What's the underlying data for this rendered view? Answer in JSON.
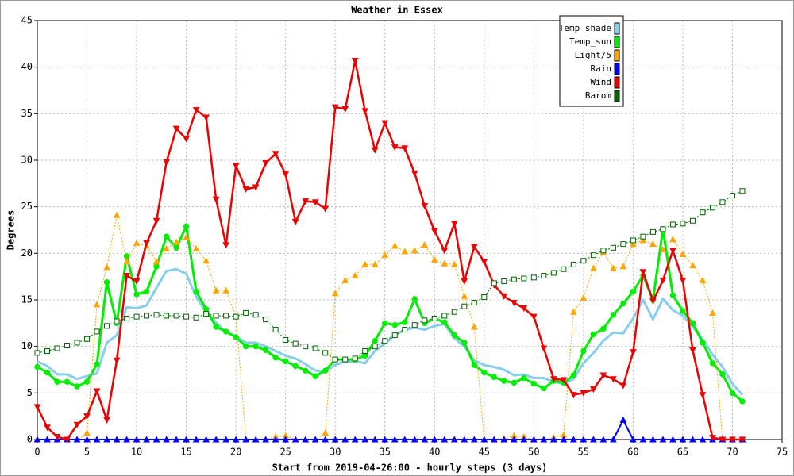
{
  "chart_data": {
    "type": "line",
    "title": "Weather in Essex",
    "y_label": "Degrees",
    "x_label": "Start from 2019-04-26:00 - hourly steps (3 days)",
    "x": [
      0,
      1,
      2,
      3,
      4,
      5,
      6,
      7,
      8,
      9,
      10,
      11,
      12,
      13,
      14,
      15,
      16,
      17,
      18,
      19,
      20,
      21,
      22,
      23,
      24,
      25,
      26,
      27,
      28,
      29,
      30,
      31,
      32,
      33,
      34,
      35,
      36,
      37,
      38,
      39,
      40,
      41,
      42,
      43,
      44,
      45,
      46,
      47,
      48,
      49,
      50,
      51,
      52,
      53,
      54,
      55,
      56,
      57,
      58,
      59,
      60,
      61,
      62,
      63,
      64,
      65,
      66,
      67,
      68,
      69,
      70,
      71
    ],
    "xlim": [
      0,
      75
    ],
    "xticks": [
      0,
      5,
      10,
      15,
      20,
      25,
      30,
      35,
      40,
      45,
      50,
      55,
      60,
      65,
      70,
      75
    ],
    "ylim": [
      0,
      45
    ],
    "yticks": [
      0,
      5,
      10,
      15,
      20,
      25,
      30,
      35,
      40,
      45
    ],
    "grid": true,
    "legend": "upper right",
    "series": [
      {
        "name": "Temp_shade",
        "color": "#87ceeb",
        "marker": "none",
        "dash": false,
        "width": 3,
        "values": [
          8.4,
          7.9,
          7,
          7,
          6.5,
          6.8,
          7.1,
          10.4,
          11.2,
          14.2,
          14.1,
          14.4,
          16.3,
          18.1,
          18.3,
          17.8,
          15.3,
          13.7,
          12.6,
          11.5,
          11.1,
          10.4,
          10.4,
          10,
          9.5,
          9,
          8.7,
          8.1,
          7.4,
          7.3,
          8,
          8.4,
          8.4,
          8.2,
          9.5,
          10.3,
          11.2,
          11.8,
          12,
          11.8,
          12.2,
          12.4,
          10.9,
          10,
          8.5,
          8,
          7.8,
          7.5,
          6.9,
          7,
          6.6,
          6.6,
          6.2,
          6,
          6.5,
          8.2,
          9.3,
          10.6,
          11.5,
          11.4,
          13,
          15,
          12.9,
          15.1,
          13.9,
          13.3,
          12.1,
          10.8,
          9.1,
          7.8,
          6,
          4.8
        ]
      },
      {
        "name": "Temp_sun",
        "color": "#00ee00",
        "marker": "circle",
        "dash": false,
        "width": 3,
        "values": [
          7.8,
          7.2,
          6.2,
          6.2,
          5.7,
          6.2,
          8.1,
          16.9,
          12.5,
          19.7,
          15.6,
          15.9,
          18.6,
          21.8,
          20.6,
          22.9,
          15.9,
          14,
          12.1,
          11.6,
          11,
          10,
          10,
          9.6,
          8.8,
          8.4,
          7.9,
          7.4,
          6.8,
          7.4,
          8.6,
          8.6,
          8.6,
          9,
          10.6,
          12.5,
          12.3,
          12.6,
          15.1,
          12.5,
          13,
          12.6,
          11.2,
          10.4,
          8,
          7.2,
          6.7,
          6.3,
          6.1,
          6.6,
          6,
          5.5,
          6.3,
          6.1,
          6.9,
          9.5,
          11.3,
          11.9,
          13.4,
          14.6,
          15.9,
          17.6,
          15,
          22.6,
          15.5,
          13.8,
          12.5,
          10.4,
          8.2,
          7,
          5,
          4.1
        ]
      },
      {
        "name": "Light/5",
        "color": "#ffa500",
        "marker": "triangle-up",
        "dash": true,
        "width": 1,
        "values": [
          0,
          0,
          0,
          0,
          0,
          0.7,
          14.5,
          18.5,
          24.1,
          19.1,
          21.1,
          20.8,
          19.1,
          20.5,
          21.2,
          21.7,
          20.5,
          19.2,
          16,
          16,
          13.2,
          0,
          0,
          0,
          0.3,
          0.4,
          0,
          0,
          0,
          0.7,
          15.7,
          17.1,
          17.6,
          18.8,
          18.8,
          19.8,
          20.8,
          20.2,
          20.3,
          20.9,
          19.3,
          18.9,
          18.8,
          15.4,
          12.1,
          0,
          0,
          0.1,
          0.4,
          0.3,
          0,
          0,
          0.2,
          0.5,
          13.7,
          15.2,
          18.4,
          20.1,
          18.4,
          18.6,
          21,
          21.4,
          21,
          20.4,
          21.5,
          19.9,
          18.7,
          17.1,
          13.6,
          0,
          0,
          0
        ]
      },
      {
        "name": "Rain",
        "color": "#0000ff",
        "marker": "triangle-up",
        "dash": false,
        "width": 2,
        "values": [
          0,
          0,
          0,
          0,
          0,
          0,
          0,
          0,
          0,
          0,
          0,
          0,
          0,
          0,
          0,
          0,
          0,
          0,
          0,
          0,
          0,
          0,
          0,
          0,
          0,
          0,
          0,
          0,
          0,
          0,
          0,
          0,
          0,
          0,
          0,
          0,
          0,
          0,
          0,
          0,
          0,
          0,
          0,
          0,
          0,
          0,
          0,
          0,
          0,
          0,
          0,
          0,
          0,
          0,
          0,
          0,
          0,
          0,
          0,
          2.1,
          0,
          0,
          0,
          0,
          0,
          0,
          0,
          0,
          0,
          0,
          0,
          0
        ]
      },
      {
        "name": "Wind",
        "color": "#ee0000",
        "marker": "triangle-down",
        "dash": false,
        "width": 2.5,
        "values": [
          3.5,
          1.3,
          0.3,
          0,
          1.6,
          2.5,
          5.2,
          2.1,
          8.5,
          17.6,
          17,
          21.1,
          23.5,
          29.8,
          33.4,
          32.3,
          35.4,
          34.6,
          25.8,
          20.9,
          29.4,
          26.9,
          27.1,
          29.7,
          30.7,
          28.5,
          23.4,
          25.6,
          25.5,
          24.8,
          35.7,
          35.5,
          40.7,
          35.3,
          31.1,
          34,
          31.4,
          31.3,
          28.6,
          25.1,
          22.4,
          20.3,
          23.2,
          17,
          20.7,
          19.1,
          16.6,
          15.4,
          14.7,
          14.1,
          13.2,
          9.8,
          6.5,
          6.4,
          4.8,
          5,
          5.4,
          6.9,
          6.5,
          5.8,
          9.4,
          18,
          14.9,
          17.1,
          20.3,
          17.1,
          9.6,
          4.8,
          0.2,
          0,
          0,
          0
        ]
      },
      {
        "name": "Barom",
        "color": "#006400",
        "marker": "square",
        "dash": true,
        "width": 1,
        "values": [
          9.3,
          9.5,
          9.8,
          10.1,
          10.4,
          10.8,
          11.6,
          12.2,
          12.7,
          13,
          13.2,
          13.3,
          13.4,
          13.3,
          13.3,
          13.2,
          13.1,
          13.5,
          13.3,
          13.3,
          13.2,
          13.6,
          13.4,
          12.9,
          11.8,
          10.7,
          10.3,
          10,
          9.8,
          9.3,
          8.6,
          8.6,
          8.7,
          9.5,
          10,
          10.6,
          11.2,
          11.8,
          12.3,
          12.8,
          13,
          13.3,
          13.7,
          14.3,
          14.7,
          15.3,
          16.8,
          17,
          17.2,
          17.3,
          17.4,
          17.6,
          17.9,
          18.3,
          18.8,
          19.2,
          19.8,
          20.3,
          20.6,
          21,
          21.4,
          21.8,
          22.3,
          22.6,
          23.1,
          23.2,
          23.5,
          24.4,
          24.9,
          25.5,
          26.2,
          26.7
        ]
      }
    ]
  }
}
